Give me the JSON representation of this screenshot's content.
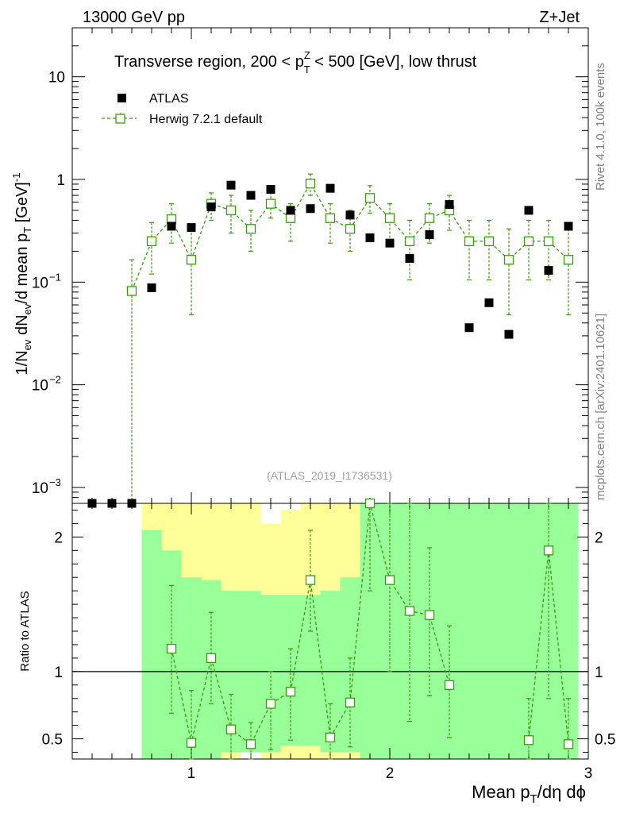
{
  "header": {
    "left": "13000 GeV pp",
    "right": "Z+Jet"
  },
  "side_labels": {
    "rivet": "Rivet 4.1.0,  100k events",
    "mcplots": "mcplots.cern.ch [arXiv:2401.10621]"
  },
  "colors": {
    "data": "#000000",
    "mc": "#3a9a10",
    "band_inner": "#99ff99",
    "band_outer": "#ffff99"
  },
  "chart_data": {
    "type": "scatter",
    "title": {
      "prefix": "Transverse region, 200 < p",
      "sup": "Z",
      "sub": "T",
      "suffix": " < 500 [GeV], low thrust"
    },
    "analysis_id": "(ATLAS_2019_I1736531)",
    "legend": [
      {
        "name": "ATLAS",
        "marker": "filled-square"
      },
      {
        "name": "Herwig 7.2.1 default",
        "marker": "open-square-dashed"
      }
    ],
    "legend_position": "top-left",
    "xlabel": {
      "a": "Mean p",
      "sub": "T",
      "b": "/dη dϕ"
    },
    "ylabel": {
      "a": "1/N",
      "sub1": "ev",
      "b": " dN",
      "sub2": "ev",
      "c": "/d mean p",
      "sub3": "T",
      "d": " [GeV]",
      "sup": "-1"
    },
    "ratio_ylabel": "Ratio to ATLAS",
    "x_range": [
      0.4,
      3.0
    ],
    "x_ticks": [
      1,
      2,
      3
    ],
    "y_scale": "log",
    "y_range": [
      0.0007,
      30
    ],
    "y_ticks": [
      {
        "value": 0.001,
        "base": "10",
        "exp": "−3"
      },
      {
        "value": 0.01,
        "base": "10",
        "exp": "−2"
      },
      {
        "value": 0.1,
        "base": "10",
        "exp": "−1"
      },
      {
        "value": 1,
        "label": "1"
      },
      {
        "value": 10,
        "label": "10"
      }
    ],
    "ratio_range": [
      0.35,
      2.25
    ],
    "ratio_ticks": [
      0.5,
      1,
      2
    ],
    "ratio_reference": 1,
    "data": {
      "name": "ATLAS",
      "x": [
        0.5,
        0.6,
        0.7,
        0.8,
        0.9,
        1.0,
        1.1,
        1.2,
        1.3,
        1.4,
        1.5,
        1.6,
        1.7,
        1.8,
        1.9,
        2.0,
        2.1,
        2.2,
        2.3,
        2.4,
        2.5,
        2.6,
        2.7,
        2.8,
        2.9
      ],
      "y": [
        0.0007,
        0.0007,
        0.0007,
        0.088,
        0.35,
        0.34,
        0.54,
        0.88,
        0.7,
        0.8,
        0.5,
        0.52,
        0.82,
        0.45,
        0.27,
        0.24,
        0.17,
        0.29,
        0.57,
        0.036,
        0.063,
        0.031,
        0.5,
        0.13,
        0.35
      ],
      "err_lo": [
        0,
        0,
        0,
        0,
        0.03,
        0,
        0.05,
        0,
        0,
        0.06,
        0.04,
        0,
        0,
        0.04,
        0,
        0.02,
        0,
        0.03,
        0.05,
        0,
        0,
        0,
        0,
        0.015,
        0
      ],
      "err_hi": [
        0,
        0,
        0,
        0,
        0.03,
        0,
        0.05,
        0,
        0,
        0.06,
        0.04,
        0,
        0,
        0.04,
        0,
        0.02,
        0,
        0.03,
        0.05,
        0,
        0,
        0,
        0,
        0.015,
        0
      ]
    },
    "mc": {
      "name": "Herwig 7.2.1 default",
      "x": [
        0.7,
        0.8,
        0.9,
        1.0,
        1.1,
        1.2,
        1.3,
        1.4,
        1.5,
        1.6,
        1.7,
        1.8,
        1.9,
        2.0,
        2.1,
        2.2,
        2.3,
        2.4,
        2.5,
        2.6,
        2.7,
        2.8,
        2.9
      ],
      "y": [
        0.082,
        0.25,
        0.41,
        0.165,
        0.58,
        0.5,
        0.33,
        0.58,
        0.42,
        0.91,
        0.42,
        0.33,
        0.66,
        0.42,
        0.25,
        0.42,
        0.5,
        0.25,
        0.25,
        0.165,
        0.25,
        0.25,
        0.165
      ],
      "y_lo": [
        0.0005,
        0.12,
        0.24,
        0.048,
        0.4,
        0.3,
        0.2,
        0.42,
        0.25,
        0.7,
        0.24,
        0.2,
        0.47,
        0.24,
        0.105,
        0.24,
        0.32,
        0.105,
        0.105,
        0.048,
        0.105,
        0.105,
        0.048
      ],
      "y_hi": [
        0.165,
        0.38,
        0.58,
        0.33,
        0.74,
        0.7,
        0.5,
        0.75,
        0.58,
        1.13,
        0.58,
        0.5,
        0.87,
        0.58,
        0.4,
        0.58,
        0.7,
        0.4,
        0.4,
        0.33,
        0.4,
        0.4,
        0.33
      ],
      "ratio": [
        null,
        null,
        1.17,
        0.47,
        1.1,
        0.57,
        0.46,
        0.76,
        0.85,
        1.68,
        0.51,
        0.77,
        2.3,
        1.68,
        1.45,
        1.42,
        0.9,
        null,
        null,
        null,
        0.49,
        1.9,
        0.46
      ],
      "ratio_lo": [
        null,
        null,
        0.69,
        0.33,
        0.76,
        0.33,
        0.33,
        0.42,
        0.49,
        1.3,
        0.35,
        0.44,
        1.6,
        1.0,
        0.63,
        0.82,
        0.51,
        null,
        null,
        null,
        0.33,
        0.8,
        0.33
      ],
      "ratio_hi": [
        null,
        null,
        1.64,
        0.86,
        1.44,
        0.83,
        0.62,
        1.0,
        1.17,
        2.05,
        0.76,
        1.1,
        2.3,
        2.3,
        2.3,
        1.92,
        1.34,
        null,
        null,
        null,
        0.8,
        2.3,
        0.8
      ]
    },
    "uncertainty_bands": {
      "edges": [
        0.75,
        0.85,
        0.95,
        1.05,
        1.15,
        1.25,
        1.35,
        1.45,
        1.55,
        1.65,
        1.75,
        1.85,
        1.95,
        2.05,
        2.15,
        2.25,
        2.35,
        2.45,
        2.55,
        2.65,
        2.75,
        2.85,
        2.95
      ],
      "inner_lo": [
        0.0,
        0.0,
        0.35,
        0.35,
        0.4,
        0.4,
        0.4,
        0.45,
        0.45,
        0.4,
        0.4,
        0.0,
        0.0,
        0.0,
        0.0,
        0.0,
        0.0,
        0.0,
        0.0,
        0.0,
        0.0,
        0.0
      ],
      "inner_hi": [
        2.05,
        1.9,
        1.7,
        1.68,
        1.6,
        1.6,
        1.57,
        1.57,
        1.57,
        1.6,
        1.7,
        2.25,
        2.25,
        2.25,
        2.25,
        2.25,
        2.25,
        2.25,
        2.25,
        2.25,
        2.25,
        2.25
      ],
      "outer_lo": [
        0.0,
        0.0,
        0.35,
        0.35,
        0.35,
        0.4,
        0.35,
        0.35,
        0.35,
        0.35,
        0.35,
        0.0,
        0.0,
        0.0,
        0.0,
        0.0,
        0.0,
        0.0,
        0.0,
        0.0,
        0.0,
        0.0
      ],
      "outer_hi": [
        2.25,
        2.25,
        2.25,
        2.25,
        2.25,
        2.25,
        2.1,
        2.2,
        2.25,
        2.25,
        2.25,
        2.25,
        2.25,
        2.25,
        2.25,
        2.25,
        2.25,
        2.25,
        2.25,
        2.25,
        2.25,
        2.25
      ]
    }
  }
}
